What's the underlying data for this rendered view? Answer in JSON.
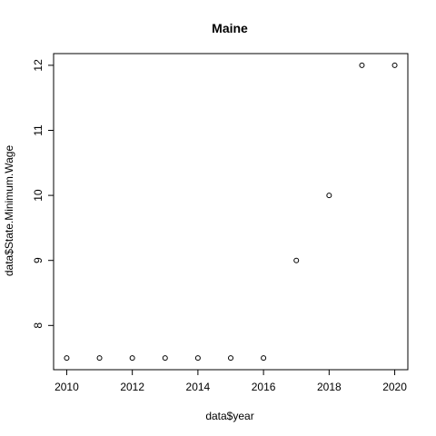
{
  "chart_data": {
    "type": "scatter",
    "title": "Maine",
    "xlabel": "data$year",
    "ylabel": "data$State.Minimum.Wage",
    "x": [
      2010,
      2011,
      2012,
      2013,
      2014,
      2015,
      2016,
      2017,
      2018,
      2019,
      2020
    ],
    "y": [
      7.5,
      7.5,
      7.5,
      7.5,
      7.5,
      7.5,
      7.5,
      9,
      10,
      12,
      12
    ],
    "xlim": [
      2009.6,
      2020.4
    ],
    "ylim": [
      7.32,
      12.18
    ],
    "xticks": [
      2010,
      2012,
      2014,
      2016,
      2018,
      2020
    ],
    "yticks": [
      8,
      9,
      10,
      11,
      12
    ],
    "grid": false,
    "point_shape": "open-circle"
  }
}
